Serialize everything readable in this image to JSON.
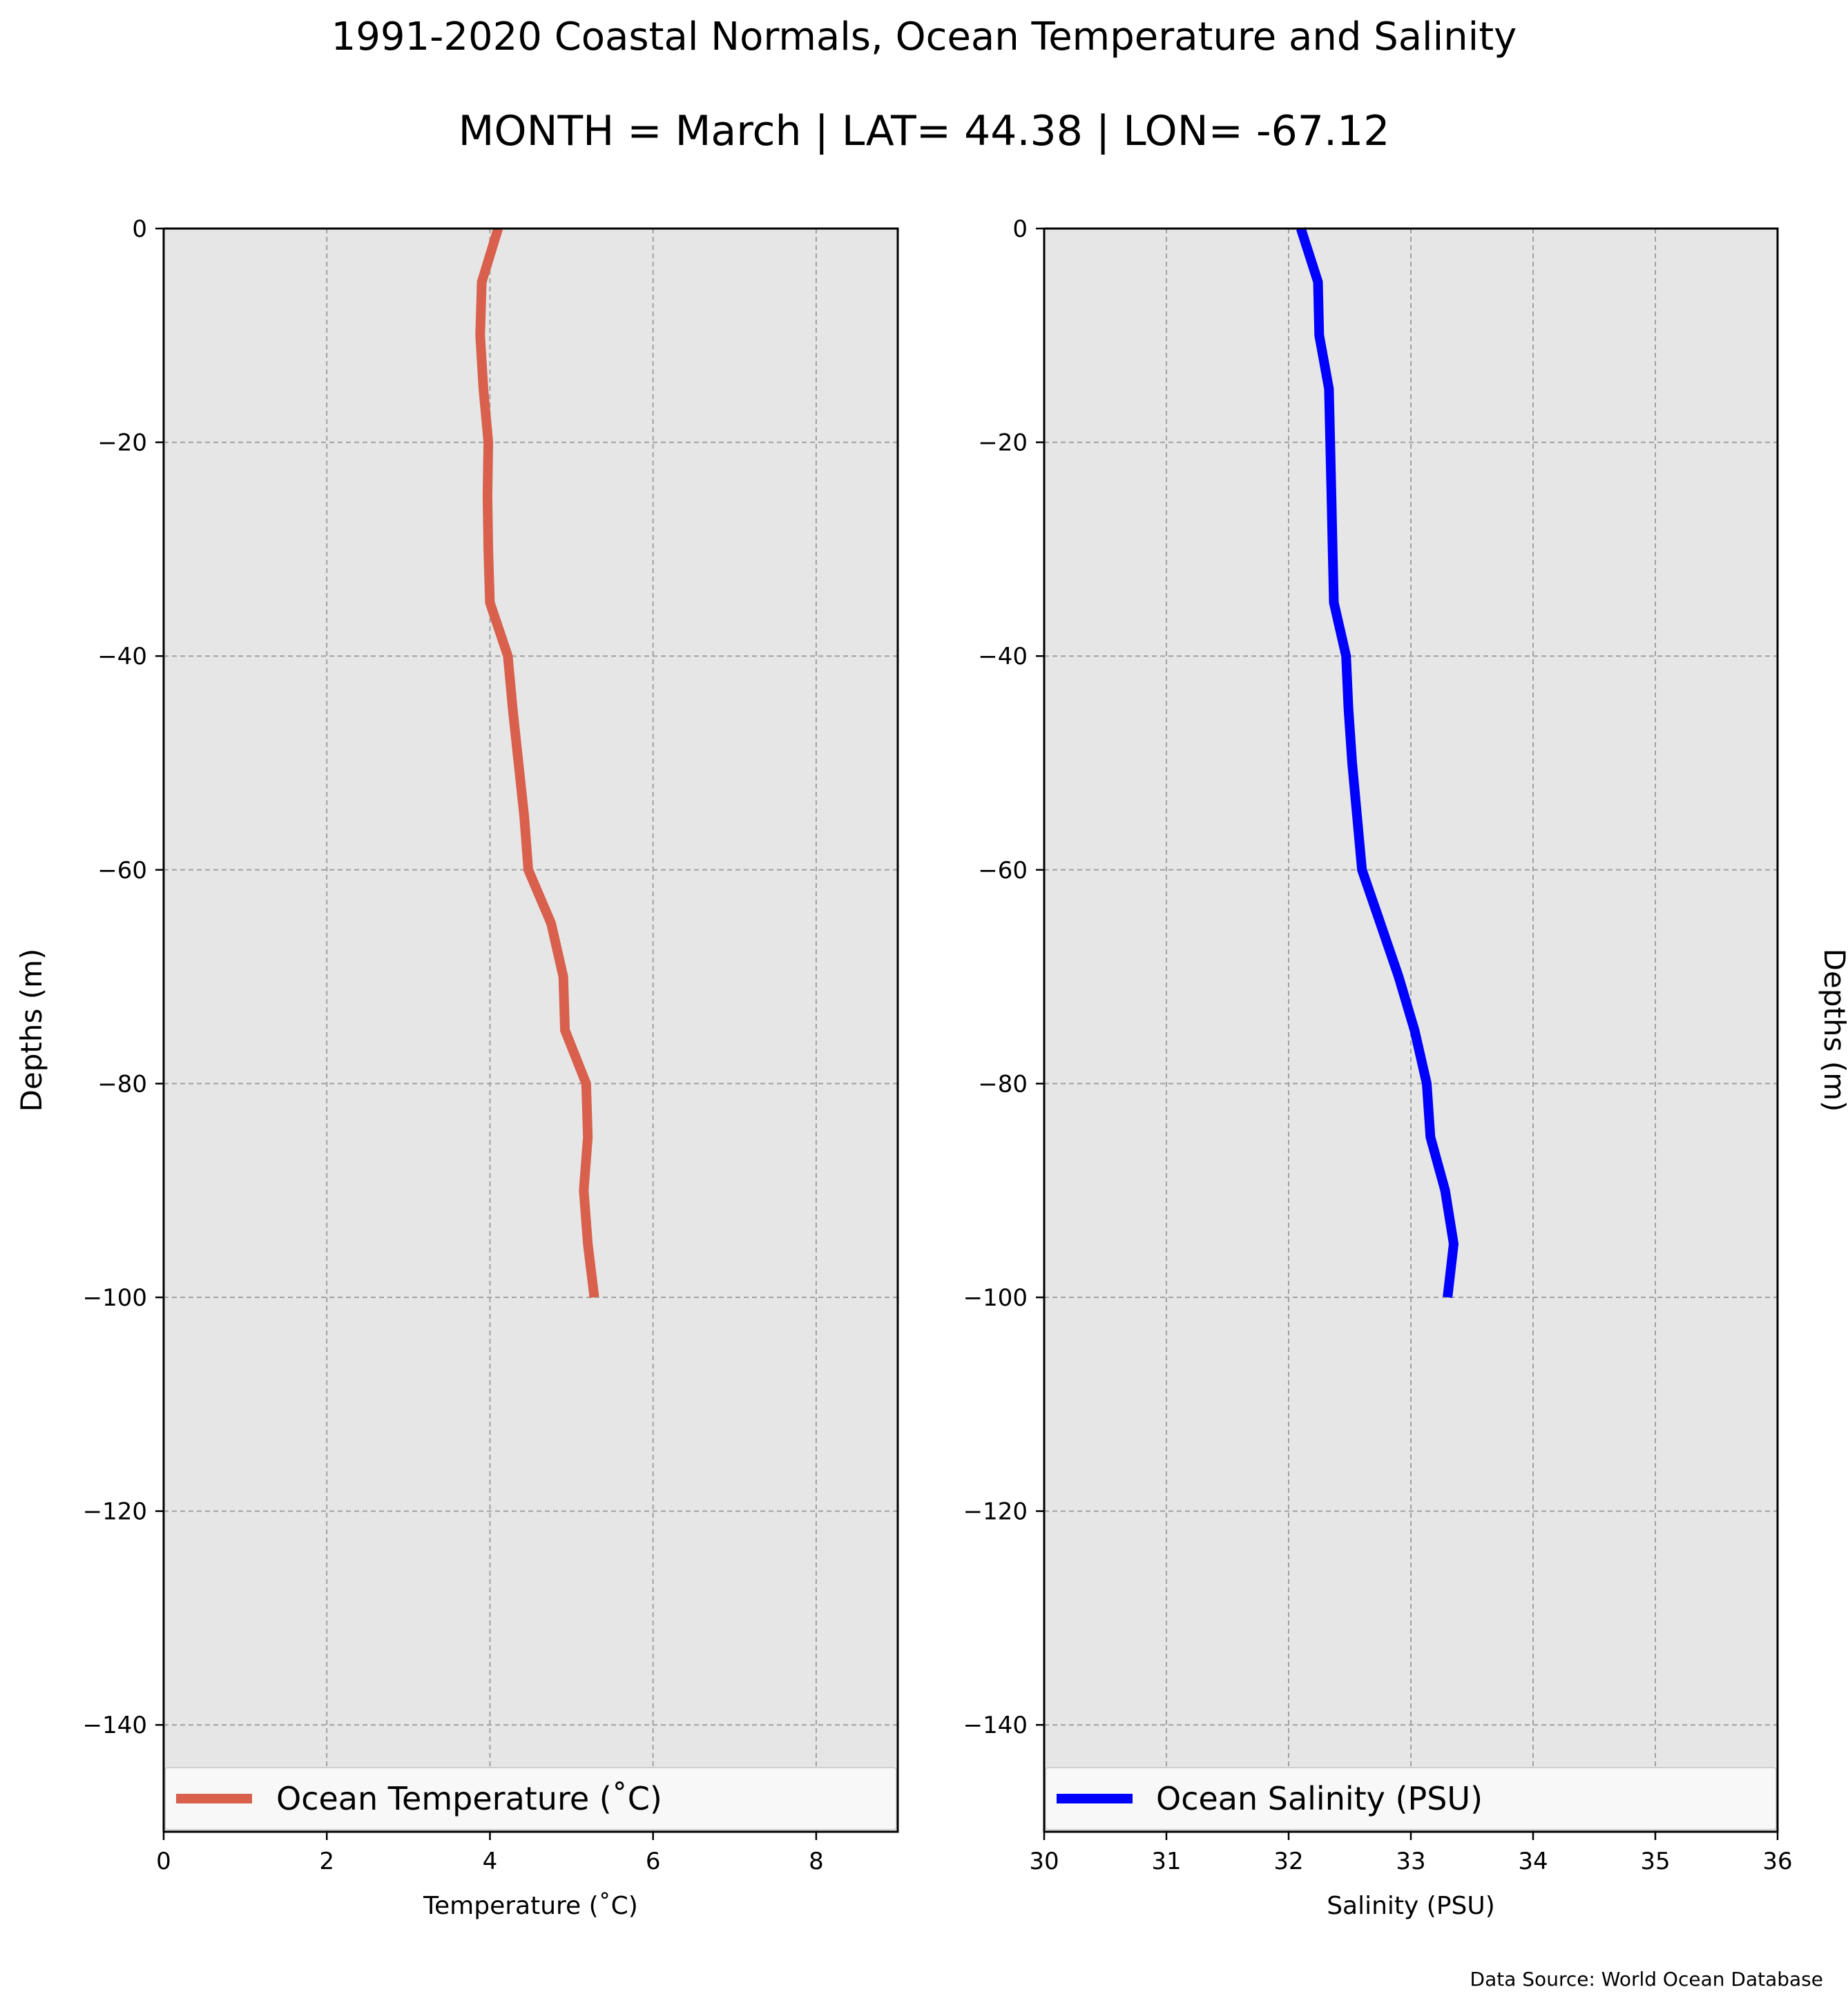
{
  "figure": {
    "title_line1": "1991-2020 Coastal Normals, Ocean Temperature and Salinity",
    "title_line2": "MONTH = March | LAT= 44.38 | LON= -67.12",
    "source": "Data Source: World Ocean Database",
    "background": "#ffffff",
    "plot_background": "#e6e6e6",
    "grid_color": "#a0a0a0"
  },
  "chart_data": [
    {
      "type": "line",
      "orientation": "vertical-profile",
      "xlabel": "Temperature ($^\\circ$C)",
      "xlabel_display": "Temperature (˚C)",
      "ylabel": "Depths (m)",
      "ylabel_side": "left",
      "xlim": [
        0,
        9
      ],
      "ylim": [
        -150,
        0
      ],
      "xticks": [
        0,
        2,
        4,
        6,
        8
      ],
      "yticks": [
        0,
        -20,
        -40,
        -60,
        -80,
        -100,
        -120,
        -140
      ],
      "ytick_labels": [
        "0",
        "−20",
        "−40",
        "−60",
        "−80",
        "−100",
        "−120",
        "−140"
      ],
      "grid": true,
      "legend_position": "lower-center",
      "series": [
        {
          "name": "Ocean Temperature ($^\\circ$C)",
          "name_display": "Ocean Temperature (˚C)",
          "color": "#d9604c",
          "x": [
            4.1,
            3.9,
            3.88,
            3.92,
            3.98,
            3.97,
            3.98,
            4.0,
            4.22,
            4.28,
            4.35,
            4.42,
            4.47,
            4.75,
            4.9,
            4.92,
            5.18,
            5.2,
            5.15,
            5.2,
            5.28
          ],
          "y": [
            0,
            -5,
            -10,
            -15,
            -20,
            -25,
            -30,
            -35,
            -40,
            -45,
            -50,
            -55,
            -60,
            -65,
            -70,
            -75,
            -80,
            -85,
            -90,
            -95,
            -100
          ]
        }
      ]
    },
    {
      "type": "line",
      "orientation": "vertical-profile",
      "xlabel": "Salinity (PSU)",
      "xlabel_display": "Salinity (PSU)",
      "ylabel": "Depths (m)",
      "ylabel_side": "right",
      "xlim": [
        30,
        36
      ],
      "ylim": [
        -150,
        0
      ],
      "xticks": [
        30,
        31,
        32,
        33,
        34,
        35,
        36
      ],
      "yticks": [
        0,
        -20,
        -40,
        -60,
        -80,
        -100,
        -120,
        -140
      ],
      "ytick_labels": [
        "0",
        "−20",
        "−40",
        "−60",
        "−80",
        "−100",
        "−120",
        "−140"
      ],
      "grid": true,
      "legend_position": "lower-center",
      "series": [
        {
          "name": "Ocean Salinity (PSU)",
          "name_display": "Ocean Salinity (PSU)",
          "color": "#0000ff",
          "x": [
            32.1,
            32.24,
            32.25,
            32.33,
            32.34,
            32.35,
            32.36,
            32.37,
            32.47,
            32.49,
            32.52,
            32.56,
            32.6,
            32.75,
            32.9,
            33.03,
            33.13,
            33.16,
            33.28,
            33.35,
            33.3
          ],
          "y": [
            0,
            -5,
            -10,
            -15,
            -20,
            -25,
            -30,
            -35,
            -40,
            -45,
            -50,
            -55,
            -60,
            -65,
            -70,
            -75,
            -80,
            -85,
            -90,
            -95,
            -100
          ]
        }
      ]
    }
  ]
}
